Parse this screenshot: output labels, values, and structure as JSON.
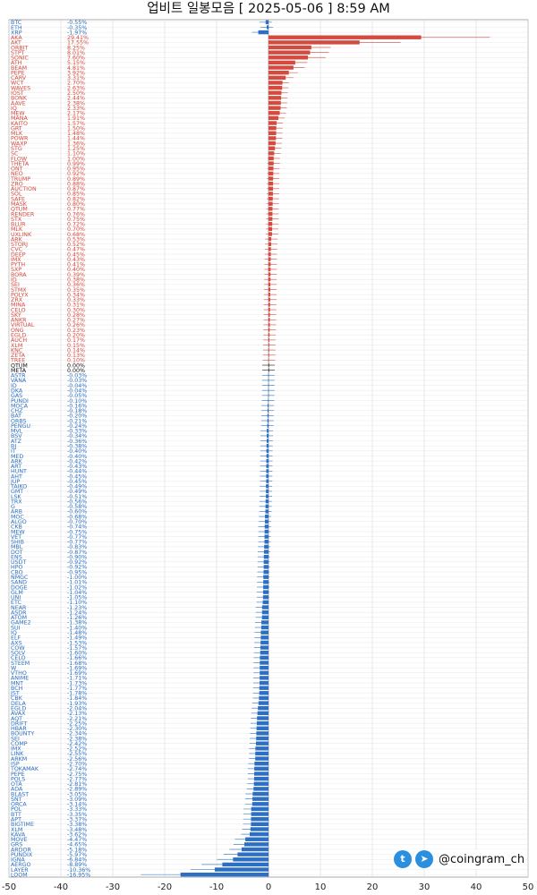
{
  "title": "업비트 일봉모음 [ 2025-05-06 ]  8:59 AM",
  "brand": {
    "handle": "@coingram_ch",
    "icons": [
      "twitter-icon",
      "telegram-icon"
    ]
  },
  "colors": {
    "positive": "#d44a3f",
    "negative": "#2d6fc2",
    "neutral": "#111111"
  },
  "chart_data": {
    "type": "bar",
    "orientation": "horizontal",
    "xlim": [
      -50,
      50
    ],
    "xticks": [
      -50,
      -40,
      -30,
      -20,
      -10,
      0,
      10,
      20,
      30,
      40,
      50
    ],
    "grid": true,
    "series": [
      {
        "name": "BTC",
        "value": -0.55,
        "label": "-0.55%"
      },
      {
        "name": "ETH",
        "value": -0.35,
        "label": "-0.35%"
      },
      {
        "name": "XRP",
        "value": -1.97,
        "label": "-1.97%"
      },
      {
        "name": "AKA",
        "value": 29.41,
        "label": "29.41%"
      },
      {
        "name": "AKT",
        "value": 17.55,
        "label": "17.55%"
      },
      {
        "name": "ORBIT",
        "value": 8.25,
        "label": "8.25%"
      },
      {
        "name": "STPT",
        "value": 8.01,
        "label": "8.01%"
      },
      {
        "name": "SONIC",
        "value": 7.6,
        "label": "7.60%"
      },
      {
        "name": "ATH",
        "value": 5.15,
        "label": "5.15%"
      },
      {
        "name": "BEAM",
        "value": 4.81,
        "label": "4.81%"
      },
      {
        "name": "PEPE",
        "value": 3.92,
        "label": "3.92%"
      },
      {
        "name": "CARV",
        "value": 3.31,
        "label": "3.31%"
      },
      {
        "name": "WCT",
        "value": 2.7,
        "label": "2.70%"
      },
      {
        "name": "WAVES",
        "value": 2.63,
        "label": "2.63%"
      },
      {
        "name": "IOST",
        "value": 2.5,
        "label": "2.50%"
      },
      {
        "name": "BONK",
        "value": 2.44,
        "label": "2.44%"
      },
      {
        "name": "AAVE",
        "value": 2.38,
        "label": "2.38%"
      },
      {
        "name": "IQ",
        "value": 2.33,
        "label": "2.33%"
      },
      {
        "name": "MEW",
        "value": 2.17,
        "label": "2.17%"
      },
      {
        "name": "MANA",
        "value": 1.91,
        "label": "1.91%"
      },
      {
        "name": "KAITO",
        "value": 1.57,
        "label": "1.57%"
      },
      {
        "name": "GRT",
        "value": 1.5,
        "label": "1.50%"
      },
      {
        "name": "MLK",
        "value": 1.48,
        "label": "1.48%"
      },
      {
        "name": "POWR",
        "value": 1.44,
        "label": "1.44%"
      },
      {
        "name": "WAXP",
        "value": 1.36,
        "label": "1.36%"
      },
      {
        "name": "STG",
        "value": 1.25,
        "label": "1.25%"
      },
      {
        "name": "SC",
        "value": 1.1,
        "label": "1.10%"
      },
      {
        "name": "FLOW",
        "value": 1.0,
        "label": "1.00%"
      },
      {
        "name": "THETA",
        "value": 0.99,
        "label": "0.99%"
      },
      {
        "name": "ONT",
        "value": 0.95,
        "label": "0.95%"
      },
      {
        "name": "NEO",
        "value": 0.92,
        "label": "0.92%"
      },
      {
        "name": "TRUMP",
        "value": 0.89,
        "label": "0.89%"
      },
      {
        "name": "ZRO",
        "value": 0.88,
        "label": "0.88%"
      },
      {
        "name": "AUCTION",
        "value": 0.87,
        "label": "0.87%"
      },
      {
        "name": "SOL",
        "value": 0.85,
        "label": "0.85%"
      },
      {
        "name": "SAFE",
        "value": 0.82,
        "label": "0.82%"
      },
      {
        "name": "MASK",
        "value": 0.8,
        "label": "0.80%"
      },
      {
        "name": "QTUM",
        "value": 0.77,
        "label": "0.77%"
      },
      {
        "name": "RENDER",
        "value": 0.76,
        "label": "0.76%"
      },
      {
        "name": "STX",
        "value": 0.75,
        "label": "0.75%"
      },
      {
        "name": "BLUR",
        "value": 0.72,
        "label": "0.72%"
      },
      {
        "name": "MLK",
        "value": 0.7,
        "label": "0.70%"
      },
      {
        "name": "UXLINK",
        "value": 0.68,
        "label": "0.68%"
      },
      {
        "name": "ARK",
        "value": 0.53,
        "label": "0.53%"
      },
      {
        "name": "STORJ",
        "value": 0.52,
        "label": "0.52%"
      },
      {
        "name": "CVC",
        "value": 0.47,
        "label": "0.47%"
      },
      {
        "name": "DEEP",
        "value": 0.45,
        "label": "0.45%"
      },
      {
        "name": "IMX",
        "value": 0.43,
        "label": "0.43%"
      },
      {
        "name": "PYTH",
        "value": 0.41,
        "label": "0.41%"
      },
      {
        "name": "SXP",
        "value": 0.4,
        "label": "0.40%"
      },
      {
        "name": "BORA",
        "value": 0.39,
        "label": "0.39%"
      },
      {
        "name": "ID",
        "value": 0.38,
        "label": "0.38%"
      },
      {
        "name": "SEI",
        "value": 0.36,
        "label": "0.36%"
      },
      {
        "name": "STMX",
        "value": 0.35,
        "label": "0.35%"
      },
      {
        "name": "POLYX",
        "value": 0.34,
        "label": "0.34%"
      },
      {
        "name": "ZRX",
        "value": 0.33,
        "label": "0.33%"
      },
      {
        "name": "MINA",
        "value": 0.31,
        "label": "0.31%"
      },
      {
        "name": "CELO",
        "value": 0.3,
        "label": "0.30%"
      },
      {
        "name": "SKY",
        "value": 0.28,
        "label": "0.28%"
      },
      {
        "name": "ANKR",
        "value": 0.27,
        "label": "0.27%"
      },
      {
        "name": "VIRTUAL",
        "value": 0.26,
        "label": "0.26%"
      },
      {
        "name": "ONG",
        "value": 0.23,
        "label": "0.23%"
      },
      {
        "name": "EGLD",
        "value": 0.2,
        "label": "0.20%"
      },
      {
        "name": "AUCH",
        "value": 0.17,
        "label": "0.17%"
      },
      {
        "name": "XLM",
        "value": 0.15,
        "label": "0.15%"
      },
      {
        "name": "KNC",
        "value": 0.14,
        "label": "0.14%"
      },
      {
        "name": "ZETA",
        "value": 0.13,
        "label": "0.13%"
      },
      {
        "name": "TREE",
        "value": 0.1,
        "label": "0.10%"
      },
      {
        "name": "QTUM",
        "value": 0.0,
        "label": "0.00%"
      },
      {
        "name": "META",
        "value": 0.0,
        "label": "0.00%"
      },
      {
        "name": "ASTR",
        "value": -0.03,
        "label": "-0.03%"
      },
      {
        "name": "VANA",
        "value": -0.03,
        "label": "-0.03%"
      },
      {
        "name": "ID",
        "value": -0.04,
        "label": "-0.04%"
      },
      {
        "name": "DKA",
        "value": -0.04,
        "label": "-0.04%"
      },
      {
        "name": "GAS",
        "value": -0.05,
        "label": "-0.05%"
      },
      {
        "name": "PUNDI",
        "value": -0.1,
        "label": "-0.10%"
      },
      {
        "name": "MOCA",
        "value": -0.16,
        "label": "-0.16%"
      },
      {
        "name": "CHZ",
        "value": -0.18,
        "label": "-0.18%"
      },
      {
        "name": "BAT",
        "value": -0.2,
        "label": "-0.20%"
      },
      {
        "name": "ORBS",
        "value": -0.21,
        "label": "-0.21%"
      },
      {
        "name": "PENGU",
        "value": -0.24,
        "label": "-0.24%"
      },
      {
        "name": "MVL",
        "value": -0.33,
        "label": "-0.33%"
      },
      {
        "name": "BSV",
        "value": -0.34,
        "label": "-0.34%"
      },
      {
        "name": "ATZ",
        "value": -0.36,
        "label": "-0.36%"
      },
      {
        "name": "BJ",
        "value": -0.38,
        "label": "-0.38%"
      },
      {
        "name": "IT",
        "value": -0.4,
        "label": "-0.40%"
      },
      {
        "name": "MED",
        "value": -0.4,
        "label": "-0.40%"
      },
      {
        "name": "ARK",
        "value": -0.42,
        "label": "-0.42%"
      },
      {
        "name": "ART",
        "value": -0.43,
        "label": "-0.43%"
      },
      {
        "name": "HUNT",
        "value": -0.44,
        "label": "-0.44%"
      },
      {
        "name": "AHT",
        "value": -0.45,
        "label": "-0.45%"
      },
      {
        "name": "JUP",
        "value": -0.45,
        "label": "-0.45%"
      },
      {
        "name": "TAIKO",
        "value": -0.49,
        "label": "-0.49%"
      },
      {
        "name": "GMT",
        "value": -0.49,
        "label": "-0.49%"
      },
      {
        "name": "LSK",
        "value": -0.51,
        "label": "-0.51%"
      },
      {
        "name": "TRX",
        "value": -0.56,
        "label": "-0.56%"
      },
      {
        "name": "G",
        "value": -0.58,
        "label": "-0.58%"
      },
      {
        "name": "ARB",
        "value": -0.6,
        "label": "-0.60%"
      },
      {
        "name": "MOC",
        "value": -0.68,
        "label": "-0.68%"
      },
      {
        "name": "ALGO",
        "value": -0.7,
        "label": "-0.70%"
      },
      {
        "name": "CKB",
        "value": -0.74,
        "label": "-0.74%"
      },
      {
        "name": "MEW",
        "value": -0.75,
        "label": "-0.75%"
      },
      {
        "name": "VET",
        "value": -0.77,
        "label": "-0.77%"
      },
      {
        "name": "SHIB",
        "value": -0.77,
        "label": "-0.77%"
      },
      {
        "name": "MBL",
        "value": -0.83,
        "label": "-0.83%"
      },
      {
        "name": "DOT",
        "value": -0.87,
        "label": "-0.87%"
      },
      {
        "name": "ENS",
        "value": -0.9,
        "label": "-0.90%"
      },
      {
        "name": "USDT",
        "value": -0.92,
        "label": "-0.92%"
      },
      {
        "name": "HPO",
        "value": -0.92,
        "label": "-0.92%"
      },
      {
        "name": "CBO",
        "value": -0.95,
        "label": "-0.95%"
      },
      {
        "name": "NMGC",
        "value": -1.0,
        "label": "-1.00%"
      },
      {
        "name": "SAND",
        "value": -1.01,
        "label": "-1.01%"
      },
      {
        "name": "DOGE",
        "value": -1.02,
        "label": "-1.02%"
      },
      {
        "name": "GLM",
        "value": -1.04,
        "label": "-1.04%"
      },
      {
        "name": "UNI",
        "value": -1.05,
        "label": "-1.05%"
      },
      {
        "name": "ETC",
        "value": -1.1,
        "label": "-1.10%"
      },
      {
        "name": "NEAR",
        "value": -1.23,
        "label": "-1.23%"
      },
      {
        "name": "ASDR",
        "value": -1.24,
        "label": "-1.24%"
      },
      {
        "name": "ATOM",
        "value": -1.26,
        "label": "-1.26%"
      },
      {
        "name": "GAME2",
        "value": -1.38,
        "label": "-1.38%"
      },
      {
        "name": "SUI",
        "value": -1.4,
        "label": "-1.40%"
      },
      {
        "name": "IQ",
        "value": -1.48,
        "label": "-1.48%"
      },
      {
        "name": "ELF",
        "value": -1.49,
        "label": "-1.49%"
      },
      {
        "name": "AXS",
        "value": -1.53,
        "label": "-1.53%"
      },
      {
        "name": "COW",
        "value": -1.57,
        "label": "-1.57%"
      },
      {
        "name": "SOLV",
        "value": -1.6,
        "label": "-1.60%"
      },
      {
        "name": "CELO",
        "value": -1.66,
        "label": "-1.66%"
      },
      {
        "name": "STEEM",
        "value": -1.68,
        "label": "-1.68%"
      },
      {
        "name": "W",
        "value": -1.69,
        "label": "-1.69%"
      },
      {
        "name": "VTHO",
        "value": -1.69,
        "label": "-1.69%"
      },
      {
        "name": "ANIME",
        "value": -1.71,
        "label": "-1.71%"
      },
      {
        "name": "MNT",
        "value": -1.73,
        "label": "-1.73%"
      },
      {
        "name": "BCH",
        "value": -1.77,
        "label": "-1.77%"
      },
      {
        "name": "JST",
        "value": -1.78,
        "label": "-1.78%"
      },
      {
        "name": "CBK",
        "value": -1.84,
        "label": "-1.84%"
      },
      {
        "name": "DELA",
        "value": -1.93,
        "label": "-1.93%"
      },
      {
        "name": "EGLD",
        "value": -2.04,
        "label": "-2.04%"
      },
      {
        "name": "AVAX",
        "value": -2.13,
        "label": "-2.13%"
      },
      {
        "name": "AQT",
        "value": -2.21,
        "label": "-2.21%"
      },
      {
        "name": "DRIFT",
        "value": -2.25,
        "label": "-2.25%"
      },
      {
        "name": "HBAR",
        "value": -2.3,
        "label": "-2.30%"
      },
      {
        "name": "BOUNTY",
        "value": -2.34,
        "label": "-2.34%"
      },
      {
        "name": "SEI",
        "value": -2.38,
        "label": "-2.38%"
      },
      {
        "name": "COMP",
        "value": -2.42,
        "label": "-2.42%"
      },
      {
        "name": "IMX",
        "value": -2.52,
        "label": "-2.52%"
      },
      {
        "name": "LINK",
        "value": -2.55,
        "label": "-2.55%"
      },
      {
        "name": "ARKM",
        "value": -2.56,
        "label": "-2.56%"
      },
      {
        "name": "ISP",
        "value": -2.7,
        "label": "-2.70%"
      },
      {
        "name": "TOKAMAK",
        "value": -2.74,
        "label": "-2.74%"
      },
      {
        "name": "PEPE",
        "value": -2.75,
        "label": "-2.75%"
      },
      {
        "name": "POLS",
        "value": -2.77,
        "label": "-2.77%"
      },
      {
        "name": "OTA",
        "value": -2.81,
        "label": "-2.81%"
      },
      {
        "name": "ADA",
        "value": -2.89,
        "label": "-2.89%"
      },
      {
        "name": "BLAST",
        "value": -3.05,
        "label": "-3.05%"
      },
      {
        "name": "SNT",
        "value": -3.09,
        "label": "-3.09%"
      },
      {
        "name": "ORCA",
        "value": -3.14,
        "label": "-3.14%"
      },
      {
        "name": "POL",
        "value": -3.33,
        "label": "-3.33%"
      },
      {
        "name": "BTT",
        "value": -3.35,
        "label": "-3.35%"
      },
      {
        "name": "APT",
        "value": -3.37,
        "label": "-3.37%"
      },
      {
        "name": "BIGTIME",
        "value": -3.38,
        "label": "-3.38%"
      },
      {
        "name": "XLM",
        "value": -3.48,
        "label": "-3.48%"
      },
      {
        "name": "KAVA",
        "value": -3.62,
        "label": "-3.62%"
      },
      {
        "name": "MOVE",
        "value": -4.47,
        "label": "-4.47%"
      },
      {
        "name": "GRS",
        "value": -4.65,
        "label": "-4.65%"
      },
      {
        "name": "ARDOR",
        "value": -5.18,
        "label": "-5.18%"
      },
      {
        "name": "PUNDIX",
        "value": -5.97,
        "label": "-5.97%"
      },
      {
        "name": "IGNA",
        "value": -6.84,
        "label": "-6.84%"
      },
      {
        "name": "AERGO",
        "value": -8.89,
        "label": "-8.89%"
      },
      {
        "name": "LAYER",
        "value": -10.36,
        "label": "-10.36%"
      },
      {
        "name": "LOOM",
        "value": -16.95,
        "label": "-16.95%"
      }
    ]
  }
}
